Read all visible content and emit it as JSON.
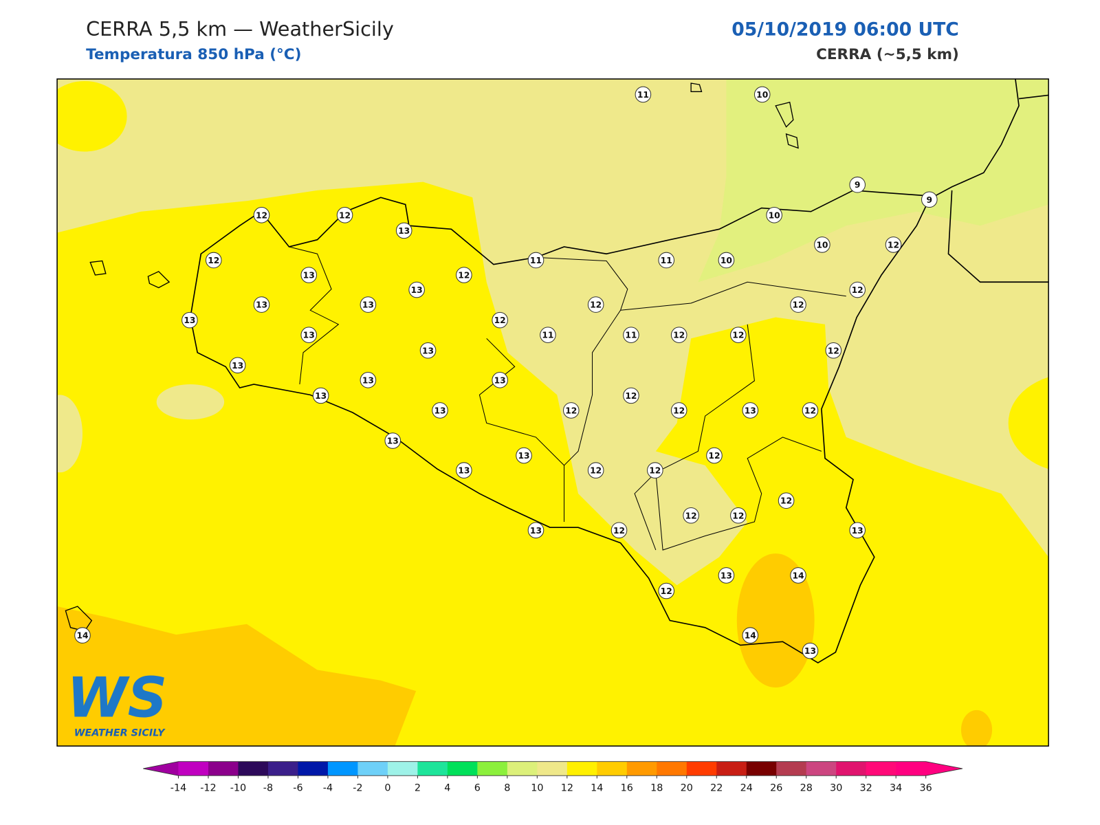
{
  "header": {
    "title": "CERRA 5,5 km — WeatherSicily",
    "subtitle": "Temperatura 850 hPa (°C)",
    "datetime": "05/10/2019 06:00 UTC",
    "model": "CERRA (~5,5 km)"
  },
  "stations": [
    11,
    10,
    9,
    9,
    10,
    12,
    12,
    13,
    10,
    12,
    12,
    11,
    11,
    10,
    13,
    12,
    13,
    12,
    13,
    13,
    12,
    12,
    13,
    12,
    13,
    11,
    11,
    12,
    12,
    13,
    12,
    13,
    13,
    13,
    13,
    13,
    12,
    12,
    12,
    13,
    12,
    13,
    13,
    12,
    13,
    12,
    12,
    12,
    12,
    12,
    13,
    12,
    13,
    13,
    14,
    12,
    14,
    13,
    14
  ],
  "logo": {
    "mark": "WS",
    "text": "WEATHER SICILY"
  },
  "colorbar": {
    "ticks": [
      -14,
      -12,
      -10,
      -8,
      -6,
      -4,
      -2,
      0,
      2,
      4,
      6,
      8,
      10,
      12,
      14,
      16,
      18,
      20,
      22,
      24,
      26,
      28,
      30,
      32,
      34,
      36
    ],
    "colors": [
      "#c000c0",
      "#8b008b",
      "#2d0a5a",
      "#3b1f8a",
      "#0018a8",
      "#0096ff",
      "#6ed0f8",
      "#9ef2e8",
      "#1ee49a",
      "#00e05a",
      "#8cf03c",
      "#dcf07a",
      "#efe88a",
      "#fff000",
      "#ffcc00",
      "#ff9a00",
      "#ff7800",
      "#ff3c00",
      "#c81e14",
      "#780000",
      "#b43c50",
      "#cc4680",
      "#e0146e",
      "#ff0a78",
      "#ff0080"
    ],
    "under": "#a000a0",
    "over": "#ff0080"
  }
}
